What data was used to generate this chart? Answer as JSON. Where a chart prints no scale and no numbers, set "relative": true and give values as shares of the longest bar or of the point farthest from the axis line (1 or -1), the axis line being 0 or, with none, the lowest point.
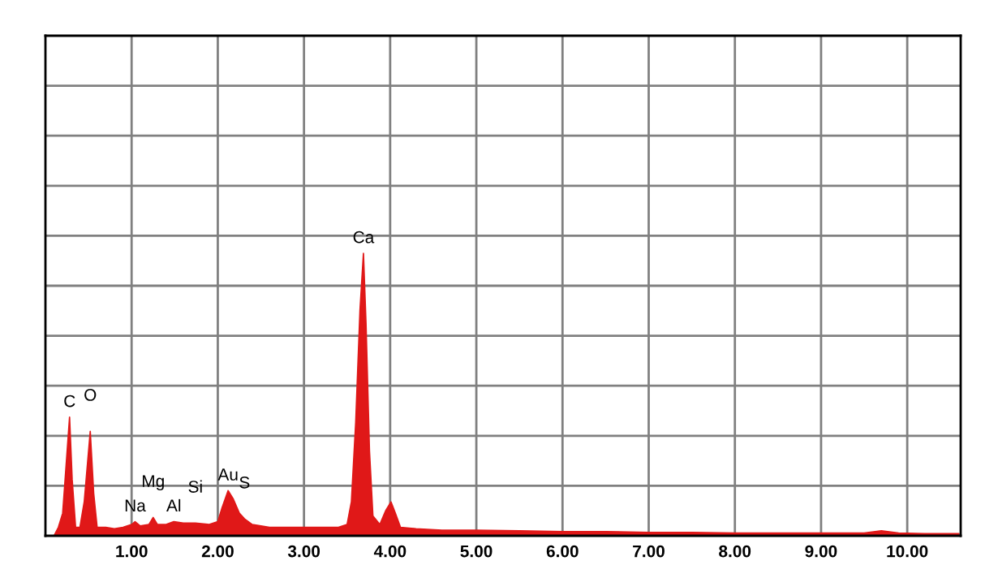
{
  "chart_data": {
    "type": "area",
    "relative": true,
    "grid": true,
    "color": "#e01818",
    "x": [
      0.0,
      0.1,
      0.15,
      0.2,
      0.24,
      0.28,
      0.31,
      0.35,
      0.4,
      0.45,
      0.52,
      0.56,
      0.6,
      0.7,
      0.8,
      0.9,
      1.0,
      1.04,
      1.1,
      1.2,
      1.25,
      1.3,
      1.4,
      1.49,
      1.6,
      1.74,
      1.9,
      2.0,
      2.05,
      2.12,
      2.18,
      2.25,
      2.31,
      2.4,
      2.6,
      2.8,
      3.0,
      3.2,
      3.4,
      3.5,
      3.55,
      3.6,
      3.65,
      3.69,
      3.72,
      3.76,
      3.8,
      3.88,
      3.95,
      4.01,
      4.06,
      4.12,
      4.3,
      4.6,
      5.0,
      5.5,
      6.0,
      6.5,
      7.0,
      7.5,
      8.0,
      8.5,
      9.0,
      9.5,
      9.7,
      9.9,
      10.2,
      10.6
    ],
    "values": [
      0,
      0,
      0.03,
      0.08,
      0.25,
      0.42,
      0.2,
      0.03,
      0.03,
      0.12,
      0.37,
      0.15,
      0.03,
      0.03,
      0.025,
      0.03,
      0.04,
      0.05,
      0.035,
      0.04,
      0.065,
      0.04,
      0.04,
      0.05,
      0.045,
      0.045,
      0.04,
      0.05,
      0.1,
      0.16,
      0.13,
      0.08,
      0.06,
      0.04,
      0.03,
      0.03,
      0.03,
      0.03,
      0.03,
      0.04,
      0.12,
      0.4,
      0.8,
      1.0,
      0.75,
      0.3,
      0.07,
      0.04,
      0.09,
      0.12,
      0.08,
      0.03,
      0.025,
      0.02,
      0.02,
      0.018,
      0.015,
      0.015,
      0.012,
      0.012,
      0.01,
      0.01,
      0.01,
      0.01,
      0.018,
      0.01,
      0.008,
      0.008
    ],
    "xlim": [
      0,
      10.62
    ],
    "xticks": [
      {
        "value": 1,
        "label": "1.00"
      },
      {
        "value": 2,
        "label": "2.00"
      },
      {
        "value": 3,
        "label": "3.00"
      },
      {
        "value": 4,
        "label": "4.00"
      },
      {
        "value": 5,
        "label": "5.00"
      },
      {
        "value": 6,
        "label": "6.00"
      },
      {
        "value": 7,
        "label": "7.00"
      },
      {
        "value": 8,
        "label": "8.00"
      },
      {
        "value": 9,
        "label": "9.00"
      },
      {
        "value": 10,
        "label": "10.00"
      }
    ],
    "annotations": [
      {
        "text": "C",
        "x": 0.28,
        "y": 0.42
      },
      {
        "text": "O",
        "x": 0.52,
        "y": 0.37
      },
      {
        "text": "Na",
        "x": 1.04,
        "y": 0.05
      },
      {
        "text": "Mg",
        "x": 1.25,
        "y": 0.065
      },
      {
        "text": "Al",
        "x": 1.49,
        "y": 0.05
      },
      {
        "text": "Si",
        "x": 1.74,
        "y": 0.045
      },
      {
        "text": "Au",
        "x": 2.12,
        "y": 0.16
      },
      {
        "text": "S",
        "x": 2.31,
        "y": 0.06
      },
      {
        "text": "Ca",
        "x": 3.69,
        "y": 1.0
      }
    ]
  }
}
